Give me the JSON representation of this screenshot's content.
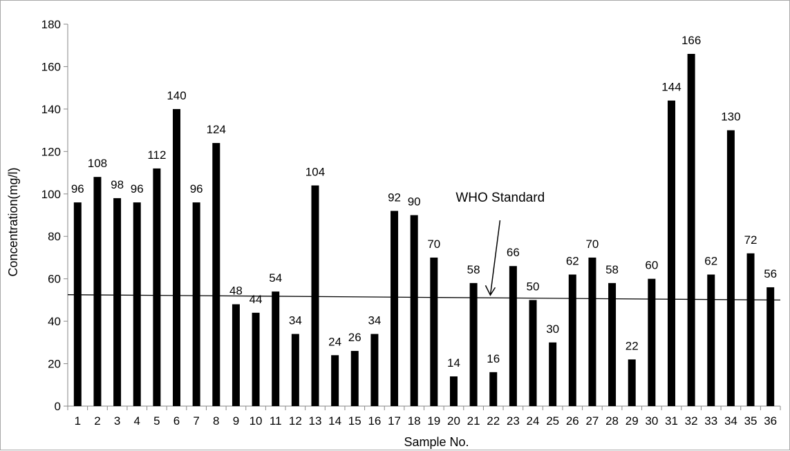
{
  "chart_data": {
    "type": "bar",
    "xlabel": "Sample No.",
    "ylabel": "Concentration(mg/l)",
    "ylim": [
      0,
      180
    ],
    "yticks": [
      0,
      20,
      40,
      60,
      80,
      100,
      120,
      140,
      160,
      180
    ],
    "grid": false,
    "legend": "none",
    "categories": [
      "1",
      "2",
      "3",
      "4",
      "5",
      "6",
      "7",
      "8",
      "9",
      "10",
      "11",
      "12",
      "13",
      "14",
      "15",
      "16",
      "17",
      "18",
      "19",
      "20",
      "21",
      "22",
      "23",
      "24",
      "25",
      "26",
      "27",
      "28",
      "29",
      "30",
      "31",
      "32",
      "33",
      "34",
      "35",
      "36"
    ],
    "values": [
      96,
      108,
      98,
      96,
      112,
      140,
      96,
      124,
      48,
      44,
      54,
      34,
      104,
      24,
      26,
      34,
      92,
      90,
      70,
      14,
      58,
      16,
      66,
      50,
      30,
      62,
      70,
      58,
      22,
      60,
      144,
      166,
      62,
      130,
      72,
      56
    ],
    "data_labels": [
      "96",
      "108",
      "98",
      "96",
      "112",
      "140",
      "96",
      "124",
      "48",
      "44",
      "54",
      "34",
      "104",
      "24",
      "26",
      "34",
      "92",
      "90",
      "70",
      "14",
      "58",
      "16",
      "66",
      "50",
      "30",
      "62",
      "70",
      "58",
      "22",
      "60",
      "144",
      "166",
      "62",
      "130",
      "72",
      "56"
    ],
    "bar_color": "#000000",
    "reference_line": {
      "label": "WHO Standard",
      "start_value": 52.5,
      "end_value": 50
    }
  }
}
